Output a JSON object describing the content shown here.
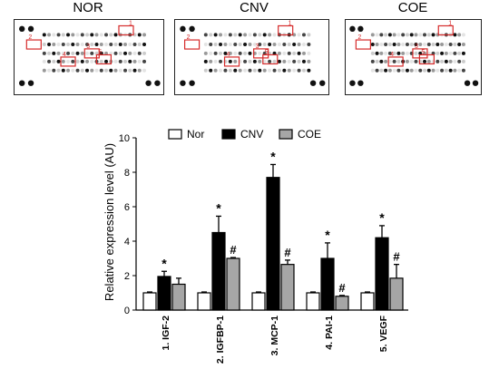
{
  "blots": [
    {
      "title": "NOR",
      "box_labels": [
        "1",
        "2",
        "3",
        "4",
        "5"
      ]
    },
    {
      "title": "CNV",
      "box_labels": [
        "1",
        "2",
        "3",
        "4",
        "5"
      ]
    },
    {
      "title": "COE",
      "box_labels": [
        "1",
        "2",
        "3",
        "4",
        "5"
      ]
    }
  ],
  "chart_data": {
    "type": "bar",
    "categories": [
      "1. IGF-2",
      "2. IGFBP-1",
      "3. MCP-1",
      "4. PAI-1",
      "5. VEGF"
    ],
    "series": [
      {
        "name": "Nor",
        "values": [
          1.0,
          1.0,
          1.0,
          1.0,
          1.0
        ],
        "errors": [
          0.05,
          0.05,
          0.05,
          0.05,
          0.05
        ],
        "markers": [
          "",
          "",
          "",
          "",
          ""
        ],
        "color": "#ffffff"
      },
      {
        "name": "CNV",
        "values": [
          1.95,
          4.5,
          7.7,
          3.0,
          4.2
        ],
        "errors": [
          0.3,
          0.95,
          0.75,
          0.9,
          0.7
        ],
        "markers": [
          "*",
          "*",
          "*",
          "*",
          "*"
        ],
        "color": "#000000"
      },
      {
        "name": "COE",
        "values": [
          1.5,
          3.0,
          2.65,
          0.8,
          1.85
        ],
        "errors": [
          0.35,
          0.05,
          0.25,
          0.05,
          0.8
        ],
        "markers": [
          "",
          "#",
          "#",
          "#",
          "#"
        ],
        "color": "#a6a6a6"
      }
    ],
    "xlabel": "",
    "ylabel": "Relative expression level (AU)",
    "ylim": [
      0,
      10
    ],
    "yticks": [
      "0",
      "2",
      "4",
      "6",
      "8",
      "10"
    ],
    "grid": false,
    "legend_position": "top"
  }
}
